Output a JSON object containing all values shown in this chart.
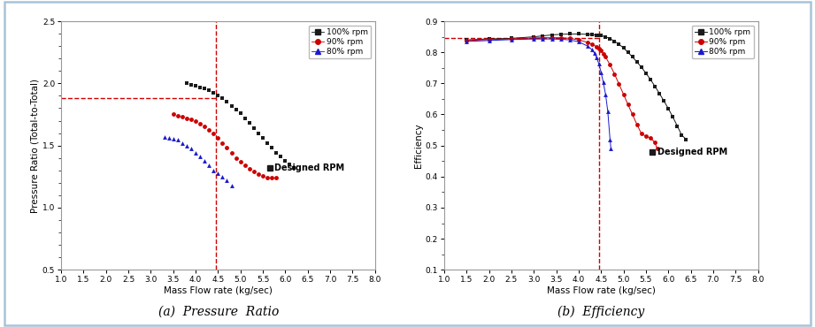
{
  "fig_bg": "#ffffff",
  "plot_bg": "#ffffff",
  "outer_border_color": "#a8c4d8",
  "xlabel": "Mass Flow rate (kg/sec)",
  "ylabel_left": "Pressure Ratio (Total-to-Total)",
  "ylabel_right": "Efficiency",
  "xlim": [
    1.0,
    8.0
  ],
  "xticks": [
    1.0,
    1.5,
    2.0,
    2.5,
    3.0,
    3.5,
    4.0,
    4.5,
    5.0,
    5.5,
    6.0,
    6.5,
    7.0,
    7.5,
    8.0
  ],
  "pr_ylim": [
    0.5,
    2.5
  ],
  "pr_yticks": [
    0.5,
    1.0,
    1.5,
    2.0,
    2.5
  ],
  "eff_ylim": [
    0.1,
    0.9
  ],
  "eff_yticks": [
    0.1,
    0.2,
    0.3,
    0.4,
    0.5,
    0.6,
    0.7,
    0.8,
    0.9
  ],
  "vline_x": 4.45,
  "pr_hline_y": 1.88,
  "eff_hline_y": 0.845,
  "caption_left": "(a)  Pressure  Ratio",
  "caption_right": "(b)  Efficiency",
  "designed_rpm_label": "Designed RPM",
  "colors": {
    "100rpm": "#1a1a1a",
    "90rpm": "#cc0000",
    "80rpm": "#1a1acc",
    "vline": "#cc0000",
    "hline": "#cc0000"
  },
  "pr_100_x": [
    3.8,
    3.9,
    4.0,
    4.1,
    4.2,
    4.3,
    4.4,
    4.5,
    4.6,
    4.7,
    4.8,
    4.9,
    5.0,
    5.1,
    5.2,
    5.3,
    5.4,
    5.5,
    5.6,
    5.7,
    5.8,
    5.9,
    6.0,
    6.1,
    6.2
  ],
  "pr_100_y": [
    2.0,
    1.99,
    1.98,
    1.97,
    1.96,
    1.945,
    1.925,
    1.905,
    1.88,
    1.85,
    1.82,
    1.79,
    1.76,
    1.72,
    1.68,
    1.64,
    1.6,
    1.56,
    1.52,
    1.48,
    1.44,
    1.41,
    1.38,
    1.35,
    1.32
  ],
  "pr_90_x": [
    3.5,
    3.6,
    3.7,
    3.8,
    3.9,
    4.0,
    4.1,
    4.2,
    4.3,
    4.4,
    4.5,
    4.6,
    4.7,
    4.8,
    4.9,
    5.0,
    5.1,
    5.2,
    5.3,
    5.4,
    5.5,
    5.6,
    5.7,
    5.8
  ],
  "pr_90_y": [
    1.75,
    1.74,
    1.73,
    1.72,
    1.71,
    1.695,
    1.675,
    1.655,
    1.625,
    1.595,
    1.56,
    1.52,
    1.48,
    1.44,
    1.4,
    1.37,
    1.34,
    1.31,
    1.29,
    1.27,
    1.255,
    1.245,
    1.24,
    1.24
  ],
  "pr_80_x": [
    3.3,
    3.4,
    3.5,
    3.6,
    3.7,
    3.8,
    3.9,
    4.0,
    4.1,
    4.2,
    4.3,
    4.4,
    4.5,
    4.6,
    4.7,
    4.8
  ],
  "pr_80_y": [
    1.57,
    1.565,
    1.555,
    1.545,
    1.52,
    1.5,
    1.475,
    1.44,
    1.41,
    1.375,
    1.34,
    1.3,
    1.28,
    1.25,
    1.22,
    1.18
  ],
  "eff_100_x": [
    1.5,
    2.0,
    2.5,
    3.0,
    3.2,
    3.4,
    3.6,
    3.8,
    4.0,
    4.2,
    4.3,
    4.4,
    4.45,
    4.5,
    4.6,
    4.7,
    4.8,
    4.9,
    5.0,
    5.1,
    5.2,
    5.3,
    5.4,
    5.5,
    5.6,
    5.7,
    5.8,
    5.9,
    6.0,
    6.1,
    6.2,
    6.3,
    6.4
  ],
  "eff_100_y": [
    0.84,
    0.843,
    0.845,
    0.85,
    0.853,
    0.856,
    0.858,
    0.859,
    0.859,
    0.858,
    0.857,
    0.856,
    0.855,
    0.854,
    0.85,
    0.844,
    0.836,
    0.826,
    0.814,
    0.8,
    0.785,
    0.769,
    0.752,
    0.733,
    0.713,
    0.691,
    0.668,
    0.644,
    0.619,
    0.592,
    0.563,
    0.533,
    0.52
  ],
  "eff_90_x": [
    1.5,
    2.0,
    2.5,
    3.0,
    3.2,
    3.4,
    3.6,
    3.8,
    4.0,
    4.2,
    4.3,
    4.4,
    4.45,
    4.5,
    4.55,
    4.6,
    4.7,
    4.8,
    4.9,
    5.0,
    5.1,
    5.2,
    5.3,
    5.4,
    5.5,
    5.6,
    5.7,
    5.75
  ],
  "eff_90_y": [
    0.838,
    0.841,
    0.843,
    0.846,
    0.847,
    0.847,
    0.847,
    0.845,
    0.84,
    0.832,
    0.826,
    0.818,
    0.812,
    0.805,
    0.796,
    0.785,
    0.76,
    0.73,
    0.698,
    0.665,
    0.632,
    0.6,
    0.568,
    0.538,
    0.53,
    0.525,
    0.51,
    0.49
  ],
  "eff_80_x": [
    1.5,
    2.0,
    2.5,
    3.0,
    3.2,
    3.4,
    3.6,
    3.8,
    4.0,
    4.2,
    4.3,
    4.35,
    4.4,
    4.45,
    4.5,
    4.55,
    4.6,
    4.65,
    4.7,
    4.72
  ],
  "eff_80_y": [
    0.835,
    0.838,
    0.841,
    0.843,
    0.843,
    0.843,
    0.842,
    0.84,
    0.834,
    0.82,
    0.808,
    0.798,
    0.783,
    0.763,
    0.736,
    0.703,
    0.665,
    0.61,
    0.52,
    0.49
  ]
}
